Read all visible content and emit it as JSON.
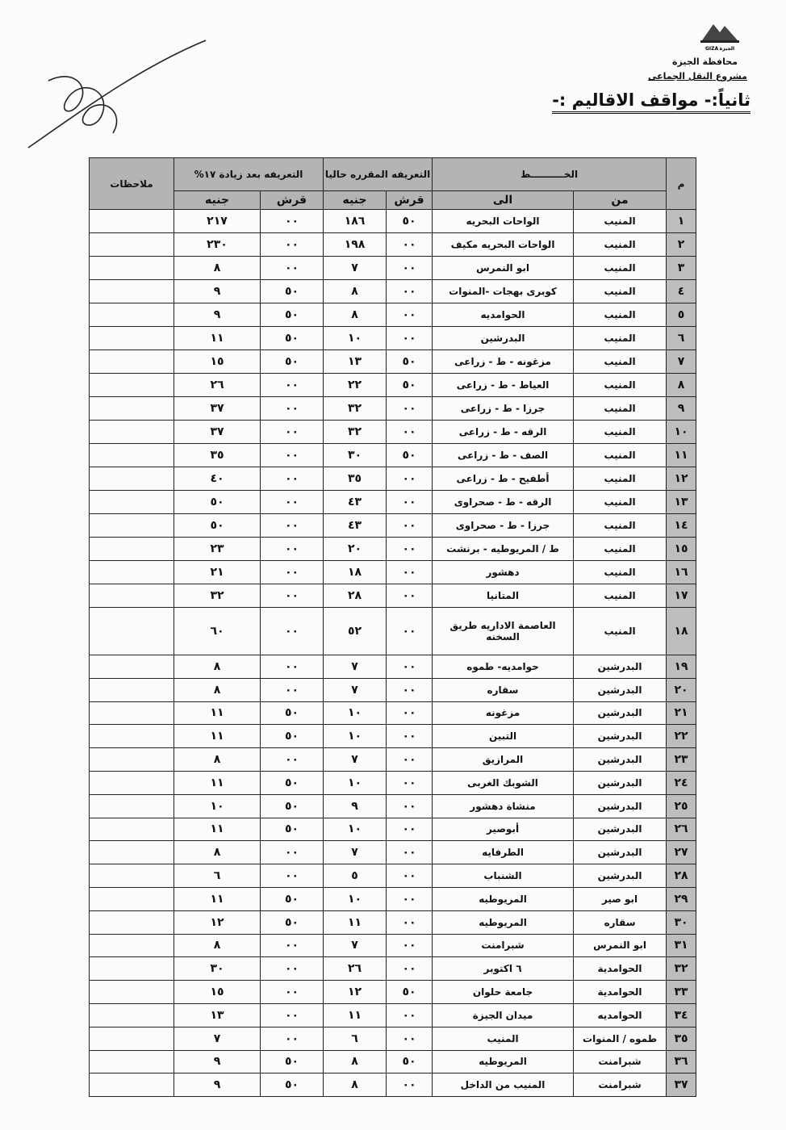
{
  "header": {
    "logo_en": "GIZA",
    "logo_ar": "الجيزة",
    "governorate": "محافظة الجيزة",
    "project": "مشروع النقل الجماعى",
    "title": "ثانياً:- مواقف الاقاليم :-"
  },
  "table": {
    "headers": {
      "num": "م",
      "line": "الخــــــــــط",
      "from": "من",
      "to": "الى",
      "current": "التعريفه المقرره حاليا",
      "after": "التعريفه بعد زيادة ١٧%",
      "qirsh1": "قرش",
      "pound1": "جنيه",
      "qirsh2": "قرش",
      "pound2": "جنيه",
      "notes": "ملاحظات"
    },
    "rows": [
      [
        "١",
        "المنيب",
        "الواحات البحريه",
        "٥٠",
        "١٨٦",
        "٠٠",
        "٢١٧"
      ],
      [
        "٢",
        "المنيب",
        "الواحات البحريه مكيف",
        "٠٠",
        "١٩٨",
        "٠٠",
        "٢٣٠"
      ],
      [
        "٣",
        "المنيب",
        "ابو النمرس",
        "٠٠",
        "٧",
        "٠٠",
        "٨"
      ],
      [
        "٤",
        "المنيب",
        "كوبرى بهجات -المنوات",
        "٠٠",
        "٨",
        "٥٠",
        "٩"
      ],
      [
        "٥",
        "المنيب",
        "الحوامديه",
        "٠٠",
        "٨",
        "٥٠",
        "٩"
      ],
      [
        "٦",
        "المنيب",
        "البدرشين",
        "٠٠",
        "١٠",
        "٥٠",
        "١١"
      ],
      [
        "٧",
        "المنيب",
        "مزغونه - ط - زراعى",
        "٥٠",
        "١٣",
        "٥٠",
        "١٥"
      ],
      [
        "٨",
        "المنيب",
        "العياط - ط - زراعى",
        "٥٠",
        "٢٢",
        "٠٠",
        "٢٦"
      ],
      [
        "٩",
        "المنيب",
        "جرزا - ط - زراعى",
        "٠٠",
        "٣٢",
        "٠٠",
        "٣٧"
      ],
      [
        "١٠",
        "المنيب",
        "الرقه - ط - زراعى",
        "٠٠",
        "٣٢",
        "٠٠",
        "٣٧"
      ],
      [
        "١١",
        "المنيب",
        "الصف - ط - زراعى",
        "٥٠",
        "٣٠",
        "٠٠",
        "٣٥"
      ],
      [
        "١٢",
        "المنيب",
        "أطفيح - ط - زراعى",
        "٠٠",
        "٣٥",
        "٠٠",
        "٤٠"
      ],
      [
        "١٣",
        "المنيب",
        "الرقه - ط - صحراوى",
        "٠٠",
        "٤٣",
        "٠٠",
        "٥٠"
      ],
      [
        "١٤",
        "المنيب",
        "جرزا - ط - صحراوى",
        "٠٠",
        "٤٣",
        "٠٠",
        "٥٠"
      ],
      [
        "١٥",
        "المنيب",
        "ط / المريوطيه - برنشت",
        "٠٠",
        "٢٠",
        "٠٠",
        "٢٣"
      ],
      [
        "١٦",
        "المنيب",
        "دهشور",
        "٠٠",
        "١٨",
        "٠٠",
        "٢١"
      ],
      [
        "١٧",
        "المنيب",
        "المتانيا",
        "٠٠",
        "٢٨",
        "٠٠",
        "٣٢"
      ],
      [
        "١٨",
        "المنيب",
        "العاصمة الاداريه طريق السخنه",
        "٠٠",
        "٥٢",
        "٠٠",
        "٦٠"
      ],
      [
        "١٩",
        "البدرشين",
        "حوامديه- طموه",
        "٠٠",
        "٧",
        "٠٠",
        "٨"
      ],
      [
        "٢٠",
        "البدرشين",
        "سقاره",
        "٠٠",
        "٧",
        "٠٠",
        "٨"
      ],
      [
        "٢١",
        "البدرشين",
        "مزغونه",
        "٠٠",
        "١٠",
        "٥٠",
        "١١"
      ],
      [
        "٢٢",
        "البدرشين",
        "التبين",
        "٠٠",
        "١٠",
        "٥٠",
        "١١"
      ],
      [
        "٢٣",
        "البدرشين",
        "المرازيق",
        "٠٠",
        "٧",
        "٠٠",
        "٨"
      ],
      [
        "٢٤",
        "البدرشين",
        "الشوبك الغربى",
        "٠٠",
        "١٠",
        "٥٠",
        "١١"
      ],
      [
        "٢٥",
        "البدرشين",
        "منشاة دهشور",
        "٠٠",
        "٩",
        "٥٠",
        "١٠"
      ],
      [
        "٢٦",
        "البدرشين",
        "أبوصير",
        "٠٠",
        "١٠",
        "٥٠",
        "١١"
      ],
      [
        "٢٧",
        "البدرشين",
        "الطرفايه",
        "٠٠",
        "٧",
        "٠٠",
        "٨"
      ],
      [
        "٢٨",
        "البدرشين",
        "الشنباب",
        "٠٠",
        "٥",
        "٠٠",
        "٦"
      ],
      [
        "٢٩",
        "ابو صير",
        "المريوطيه",
        "٠٠",
        "١٠",
        "٥٠",
        "١١"
      ],
      [
        "٣٠",
        "سقاره",
        "المريوطيه",
        "٠٠",
        "١١",
        "٥٠",
        "١٢"
      ],
      [
        "٣١",
        "ابو النمرس",
        "شبرامنت",
        "٠٠",
        "٧",
        "٠٠",
        "٨"
      ],
      [
        "٣٢",
        "الحوامدية",
        "٦ اكتوبر",
        "٠٠",
        "٢٦",
        "٠٠",
        "٣٠"
      ],
      [
        "٣٣",
        "الحوامدية",
        "جامعة حلوان",
        "٥٠",
        "١٢",
        "٠٠",
        "١٥"
      ],
      [
        "٣٤",
        "الحوامديه",
        "ميدان الجيزة",
        "٠٠",
        "١١",
        "٠٠",
        "١٣"
      ],
      [
        "٣٥",
        "طموه / المنوات",
        "المنيب",
        "٠٠",
        "٦",
        "٠٠",
        "٧"
      ],
      [
        "٣٦",
        "شبرامنت",
        "المريوطيه",
        "٥٠",
        "٨",
        "٥٠",
        "٩"
      ],
      [
        "٣٧",
        "شبرامنت",
        "المنيب من الداخل",
        "٠٠",
        "٨",
        "٥٠",
        "٩"
      ]
    ]
  }
}
